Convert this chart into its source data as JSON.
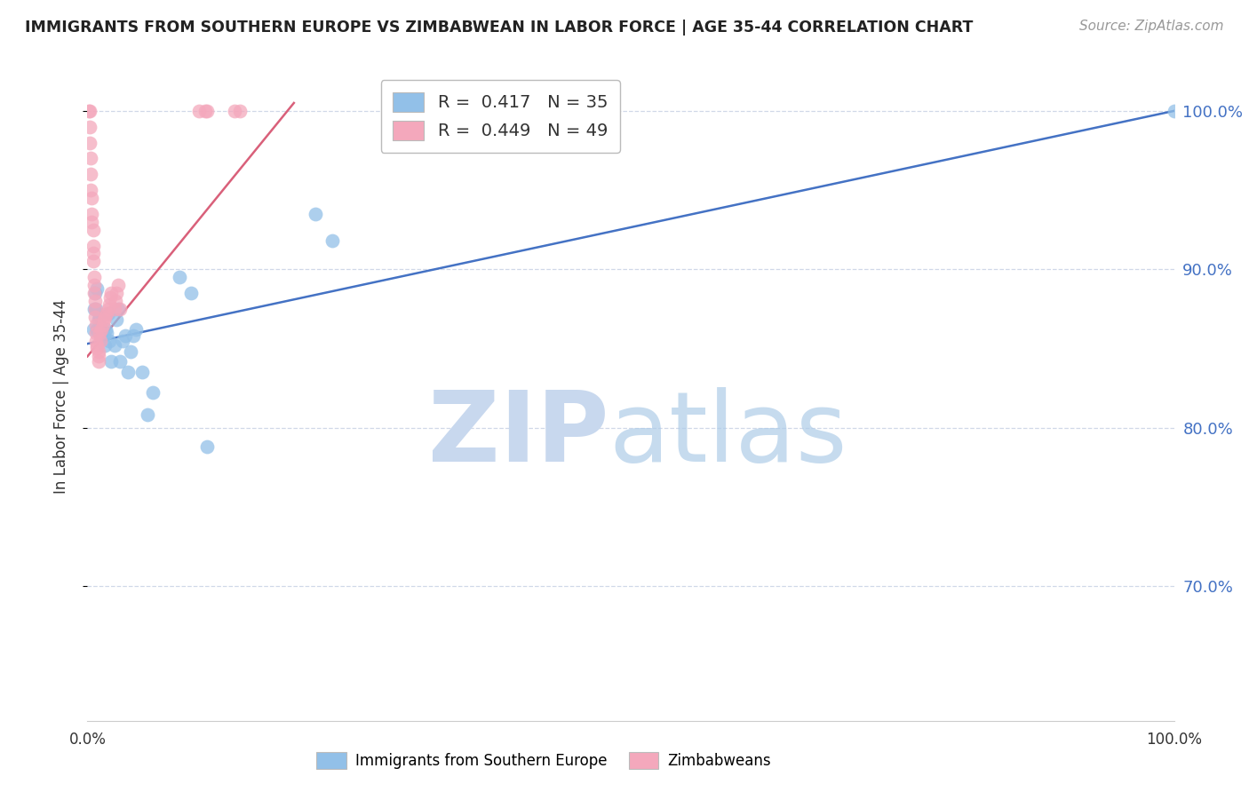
{
  "title": "IMMIGRANTS FROM SOUTHERN EUROPE VS ZIMBABWEAN IN LABOR FORCE | AGE 35-44 CORRELATION CHART",
  "source": "Source: ZipAtlas.com",
  "ylabel": "In Labor Force | Age 35-44",
  "blue_label": "Immigrants from Southern Europe",
  "pink_label": "Zimbabweans",
  "blue_R": 0.417,
  "blue_N": 35,
  "pink_R": 0.449,
  "pink_N": 49,
  "xlim": [
    0.0,
    1.0
  ],
  "ylim": [
    0.615,
    1.025
  ],
  "yticks": [
    0.7,
    0.8,
    0.9,
    1.0
  ],
  "ytick_labels": [
    "70.0%",
    "80.0%",
    "90.0%",
    "100.0%"
  ],
  "xticks": [
    0.0,
    0.125,
    0.25,
    0.375,
    0.5,
    0.625,
    0.75,
    0.875,
    1.0
  ],
  "xtick_labels": [
    "0.0%",
    "",
    "",
    "",
    "",
    "",
    "",
    "",
    "100.0%"
  ],
  "blue_color": "#92C0E8",
  "pink_color": "#F4A8BC",
  "blue_line_color": "#4472C4",
  "pink_line_color": "#D9607A",
  "blue_line_x0": 0.0,
  "blue_line_y0": 0.853,
  "blue_line_x1": 1.0,
  "blue_line_y1": 1.0,
  "pink_line_x0": 0.0,
  "pink_line_y0": 0.845,
  "pink_line_x1": 0.19,
  "pink_line_y1": 1.005,
  "blue_x": [
    0.005,
    0.006,
    0.007,
    0.008,
    0.009,
    0.009,
    0.01,
    0.011,
    0.012,
    0.015,
    0.016,
    0.017,
    0.018,
    0.019,
    0.02,
    0.022,
    0.025,
    0.027,
    0.028,
    0.03,
    0.032,
    0.035,
    0.037,
    0.04,
    0.042,
    0.045,
    0.05,
    0.055,
    0.06,
    0.085,
    0.095,
    0.11,
    0.21,
    0.225,
    1.0
  ],
  "blue_y": [
    0.862,
    0.875,
    0.885,
    0.875,
    0.888,
    0.862,
    0.868,
    0.87,
    0.858,
    0.858,
    0.852,
    0.862,
    0.86,
    0.872,
    0.855,
    0.842,
    0.852,
    0.868,
    0.875,
    0.842,
    0.855,
    0.858,
    0.835,
    0.848,
    0.858,
    0.862,
    0.835,
    0.808,
    0.822,
    0.895,
    0.885,
    0.788,
    0.935,
    0.918,
    1.0
  ],
  "pink_x": [
    0.0015,
    0.002,
    0.002,
    0.0025,
    0.003,
    0.003,
    0.003,
    0.004,
    0.004,
    0.004,
    0.005,
    0.005,
    0.005,
    0.005,
    0.006,
    0.006,
    0.006,
    0.007,
    0.007,
    0.007,
    0.008,
    0.008,
    0.008,
    0.009,
    0.009,
    0.01,
    0.01,
    0.01,
    0.011,
    0.012,
    0.013,
    0.014,
    0.015,
    0.016,
    0.018,
    0.019,
    0.02,
    0.021,
    0.022,
    0.025,
    0.026,
    0.027,
    0.028,
    0.03,
    0.103,
    0.108,
    0.11,
    0.135,
    0.14
  ],
  "pink_y": [
    1.0,
    1.0,
    0.99,
    0.98,
    0.97,
    0.96,
    0.95,
    0.945,
    0.935,
    0.93,
    0.925,
    0.915,
    0.91,
    0.905,
    0.895,
    0.89,
    0.885,
    0.88,
    0.875,
    0.87,
    0.865,
    0.86,
    0.855,
    0.852,
    0.85,
    0.848,
    0.845,
    0.842,
    0.86,
    0.855,
    0.862,
    0.865,
    0.868,
    0.87,
    0.872,
    0.875,
    0.878,
    0.882,
    0.885,
    0.875,
    0.88,
    0.885,
    0.89,
    0.875,
    1.0,
    1.0,
    1.0,
    1.0,
    1.0
  ],
  "background_color": "#FFFFFF",
  "grid_color": "#D0D8E8"
}
